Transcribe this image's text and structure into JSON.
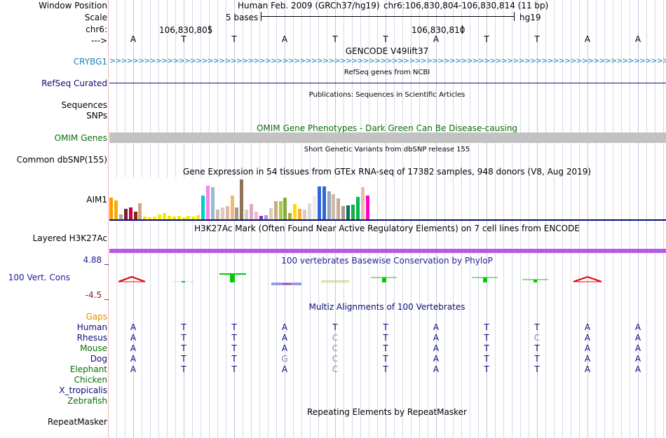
{
  "header": {
    "window_position_label": "Window Position",
    "scale_label": "Scale",
    "chrom_label": "chr6:",
    "strand_label": "--->",
    "assembly_title": "Human Feb. 2009 (GRCh37/hg19)",
    "position": "chr6:106,830,804-106,830,814 (11 bp)",
    "scale_text": "5 bases",
    "assembly_tag": "hg19",
    "coord_1": "106,830,805",
    "coord_2": "106,830,810"
  },
  "reference_bases": [
    "A",
    "T",
    "T",
    "A",
    "T",
    "T",
    "A",
    "T",
    "T",
    "A",
    "A"
  ],
  "tracks": {
    "gencode": {
      "title": "GENCODE V49lift37",
      "label": "CRYBG1",
      "color": "#1e82b4"
    },
    "refseq": {
      "title": "RefSeq genes from NCBI",
      "label": "RefSeq Curated",
      "color": "#0c0c78"
    },
    "publications": {
      "title": "Publications: Sequences in Scientific Articles",
      "label": "Sequences"
    },
    "snps_label": "SNPs",
    "omim": {
      "title": "OMIM Gene Phenotypes - Dark Green Can Be Disease-causing",
      "label": "OMIM Genes",
      "color": "#0b6e0b"
    },
    "dbsnp": {
      "title": "Short Genetic Variants from dbSNP release 155",
      "label": "Common dbSNP(155)"
    },
    "gtex": {
      "title": "Gene Expression in 54 tissues from GTEx RNA-seq of 17382 samples, 948 donors (V8, Aug 2019)",
      "label": "AIM1"
    },
    "h3k27ac": {
      "title": "H3K27Ac Mark (Often Found Near Active Regulatory Elements) on 7 cell lines from ENCODE",
      "label": "Layered H3K27Ac",
      "color": "#b45ae6"
    },
    "phylop": {
      "title": "100 vertebrates Basewise Conservation by PhyloP",
      "label": "100 Vert. Cons",
      "max_label": "4.88 _",
      "min_label": "-4.5 _",
      "color": "#1e1e96",
      "min_color": "#8b1a1a"
    },
    "multiz": {
      "title": "Multiz Alignments of 100 Vertebrates",
      "color": "#0c0c78",
      "gaps_label": "Gaps",
      "gaps_color": "#e08c00"
    },
    "repeatmasker": {
      "title": "Repeating Elements by RepeatMasker",
      "label": "RepeatMasker"
    }
  },
  "alignment": {
    "species": [
      {
        "name": "Human",
        "color": "#0c0c78",
        "bases": [
          "A",
          "T",
          "T",
          "A",
          "T",
          "T",
          "A",
          "T",
          "T",
          "A",
          "A"
        ]
      },
      {
        "name": "Rhesus",
        "color": "#0c0c78",
        "bases": [
          "A",
          "T",
          "T",
          "A",
          "C",
          "T",
          "A",
          "T",
          "C",
          "A",
          "A"
        ]
      },
      {
        "name": "Mouse",
        "color": "#0b6e0b",
        "bases": [
          "A",
          "T",
          "T",
          "A",
          "C",
          "T",
          "A",
          "T",
          "T",
          "A",
          "A"
        ]
      },
      {
        "name": "Dog",
        "color": "#0c0c78",
        "bases": [
          "A",
          "T",
          "T",
          "G",
          "C",
          "T",
          "A",
          "T",
          "T",
          "A",
          "A"
        ]
      },
      {
        "name": "Elephant",
        "color": "#0b6e0b",
        "bases": [
          "A",
          "T",
          "T",
          "A",
          "C",
          "T",
          "A",
          "T",
          "T",
          "A",
          "A"
        ]
      },
      {
        "name": "Chicken",
        "color": "#0b6e0b",
        "bases": []
      },
      {
        "name": "X_tropicalis",
        "color": "#0c0c78",
        "bases": []
      },
      {
        "name": "Zebrafish",
        "color": "#0b6e0b",
        "bases": []
      }
    ]
  },
  "chart_data": {
    "type": "bar",
    "title": "Gene Expression in 54 tissues from GTEx RNA-seq of 17382 samples, 948 donors (V8, Aug 2019)",
    "unit": "relative expression (0-1)",
    "values": [
      0.55,
      0.48,
      0.13,
      0.26,
      0.3,
      0.2,
      0.4,
      0.07,
      0.06,
      0.07,
      0.13,
      0.15,
      0.08,
      0.07,
      0.08,
      0.06,
      0.08,
      0.07,
      0.1,
      0.6,
      0.85,
      0.8,
      0.25,
      0.3,
      0.33,
      0.6,
      0.3,
      1.0,
      0.24,
      0.38,
      0.2,
      0.08,
      0.1,
      0.28,
      0.46,
      0.46,
      0.55,
      0.15,
      0.38,
      0.27,
      0.25,
      0.4,
      0.6,
      0.82,
      0.82,
      0.7,
      0.63,
      0.53,
      0.33,
      0.35,
      0.36,
      0.57,
      0.8,
      0.6
    ],
    "colors": [
      "#FF9900",
      "#FFAA00",
      "#AAAAAA",
      "#7A2031",
      "#CC0044",
      "#7F2C16",
      "#CCAA88",
      "#FFDD00",
      "#FFEE00",
      "#FFEE00",
      "#EEEE00",
      "#EEEE00",
      "#EEEE00",
      "#EEEE00",
      "#EEEE00",
      "#EEEE00",
      "#EEEE00",
      "#EEEE00",
      "#EEEE00",
      "#00CCCC",
      "#EE88EE",
      "#99BBCC",
      "#CCBBAA",
      "#DDCCBB",
      "#DDBBAA",
      "#EEBB77",
      "#AA9988",
      "#8F7555",
      "#DDCCCC",
      "#DDAACC",
      "#EEBBCC",
      "#8833CC",
      "#AA99CC",
      "#DDCCBB",
      "#CCAA88",
      "#AACC44",
      "#88AA44",
      "#AAAA44",
      "#FFDD00",
      "#FFAA44",
      "#DDCCBB",
      "#DDDDDD",
      "#EEEEEE",
      "#3366DD",
      "#3366CC",
      "#99AABB",
      "#CCBBAA",
      "#CCAA99",
      "#AA9988",
      "#007766",
      "#22AA44",
      "#00BB55",
      "#EEBBAA",
      "#FF00CC"
    ]
  }
}
